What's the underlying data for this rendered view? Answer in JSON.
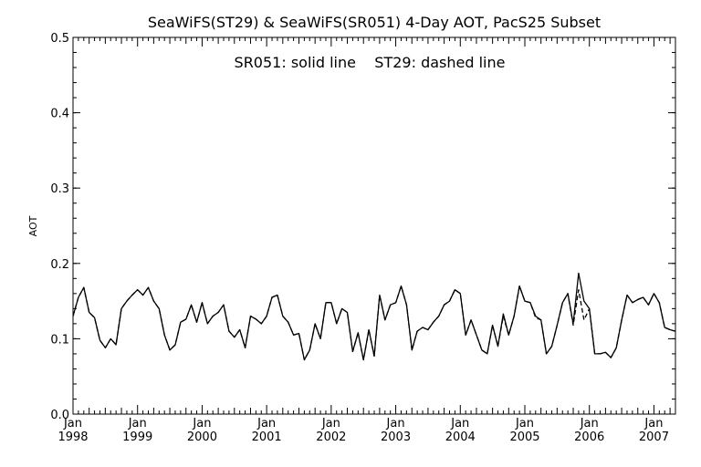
{
  "chart_data": {
    "type": "line",
    "title": "SeaWiFS(ST29) & SeaWiFS(SR051) 4-Day AOT, PacS25 Subset",
    "annotation": "SR051: solid line    ST29: dashed line",
    "xlabel": "",
    "ylabel": "AOT",
    "xlim": [
      "1998-01",
      "2007-05"
    ],
    "ylim": [
      0.0,
      0.5
    ],
    "y_ticks": [
      "0.0",
      "0.1",
      "0.2",
      "0.3",
      "0.4",
      "0.5"
    ],
    "x_ticks": [
      {
        "month": "Jan",
        "year": "1998"
      },
      {
        "month": "Jan",
        "year": "1999"
      },
      {
        "month": "Jan",
        "year": "2000"
      },
      {
        "month": "Jan",
        "year": "2001"
      },
      {
        "month": "Jan",
        "year": "2002"
      },
      {
        "month": "Jan",
        "year": "2003"
      },
      {
        "month": "Jan",
        "year": "2004"
      },
      {
        "month": "Jan",
        "year": "2005"
      },
      {
        "month": "Jan",
        "year": "2006"
      },
      {
        "month": "Jan",
        "year": "2007"
      }
    ],
    "grid": false,
    "series": [
      {
        "name": "SR051",
        "style": "solid",
        "color": "#000000",
        "x": [
          "1998-01",
          "1998-02",
          "1998-03",
          "1998-04",
          "1998-05",
          "1998-06",
          "1998-07",
          "1998-08",
          "1998-09",
          "1998-10",
          "1998-11",
          "1998-12",
          "1999-01",
          "1999-02",
          "1999-03",
          "1999-04",
          "1999-05",
          "1999-06",
          "1999-07",
          "1999-08",
          "1999-09",
          "1999-10",
          "1999-11",
          "1999-12",
          "2000-01",
          "2000-02",
          "2000-03",
          "2000-04",
          "2000-05",
          "2000-06",
          "2000-07",
          "2000-08",
          "2000-09",
          "2000-10",
          "2000-11",
          "2000-12",
          "2001-01",
          "2001-02",
          "2001-03",
          "2001-04",
          "2001-05",
          "2001-06",
          "2001-07",
          "2001-08",
          "2001-09",
          "2001-10",
          "2001-11",
          "2001-12",
          "2002-01",
          "2002-02",
          "2002-03",
          "2002-04",
          "2002-05",
          "2002-06",
          "2002-07",
          "2002-08",
          "2002-09",
          "2002-10",
          "2002-11",
          "2002-12",
          "2003-01",
          "2003-02",
          "2003-03",
          "2003-04",
          "2003-05",
          "2003-06",
          "2003-07",
          "2003-08",
          "2003-09",
          "2003-10",
          "2003-11",
          "2003-12",
          "2004-01",
          "2004-02",
          "2004-03",
          "2004-04",
          "2004-05",
          "2004-06",
          "2004-07",
          "2004-08",
          "2004-09",
          "2004-10",
          "2004-11",
          "2004-12",
          "2005-01",
          "2005-02",
          "2005-03",
          "2005-04",
          "2005-05",
          "2005-06",
          "2005-07",
          "2005-08",
          "2005-09",
          "2005-10",
          "2005-11",
          "2005-12",
          "2006-01",
          "2006-02",
          "2006-03",
          "2006-04",
          "2006-05",
          "2006-06",
          "2006-07",
          "2006-08",
          "2006-09",
          "2006-10",
          "2006-11",
          "2006-12",
          "2007-01",
          "2007-02",
          "2007-03",
          "2007-04",
          "2007-05"
        ],
        "values": [
          0.13,
          0.155,
          0.168,
          0.135,
          0.128,
          0.098,
          0.088,
          0.1,
          0.092,
          0.14,
          0.15,
          0.158,
          0.165,
          0.158,
          0.168,
          0.15,
          0.14,
          0.105,
          0.085,
          0.092,
          0.122,
          0.126,
          0.145,
          0.122,
          0.148,
          0.12,
          0.13,
          0.135,
          0.145,
          0.11,
          0.102,
          0.112,
          0.088,
          0.13,
          0.126,
          0.12,
          0.13,
          0.155,
          0.158,
          0.13,
          0.122,
          0.105,
          0.107,
          0.072,
          0.085,
          0.12,
          0.1,
          0.148,
          0.148,
          0.12,
          0.14,
          0.135,
          0.083,
          0.108,
          0.072,
          0.112,
          0.077,
          0.158,
          0.125,
          0.145,
          0.148,
          0.17,
          0.145,
          0.085,
          0.11,
          0.115,
          0.112,
          0.122,
          0.13,
          0.145,
          0.15,
          0.165,
          0.16,
          0.105,
          0.125,
          0.105,
          0.085,
          0.08,
          0.118,
          0.09,
          0.133,
          0.105,
          0.13,
          0.17,
          0.15,
          0.148,
          0.13,
          0.125,
          0.08,
          0.09,
          0.118,
          0.148,
          0.16,
          0.12,
          0.187,
          0.15,
          0.14,
          0.08,
          0.08,
          0.082,
          0.075,
          0.088,
          0.125,
          0.158,
          0.148,
          0.152,
          0.155,
          0.145,
          0.16,
          0.148,
          0.115,
          0.112,
          0.11
        ]
      },
      {
        "name": "ST29",
        "style": "dashed",
        "color": "#000000",
        "x": [
          "1998-01",
          "1998-02",
          "1998-03",
          "1998-04",
          "1998-05",
          "1998-06",
          "1998-07",
          "1998-08",
          "1998-09",
          "1998-10",
          "1998-11",
          "1998-12",
          "1999-01",
          "1999-02",
          "1999-03",
          "1999-04",
          "1999-05",
          "1999-06",
          "1999-07",
          "1999-08",
          "1999-09",
          "1999-10",
          "1999-11",
          "1999-12",
          "2000-01",
          "2000-02",
          "2000-03",
          "2000-04",
          "2000-05",
          "2000-06",
          "2000-07",
          "2000-08",
          "2000-09",
          "2000-10",
          "2000-11",
          "2000-12",
          "2001-01",
          "2001-02",
          "2001-03",
          "2001-04",
          "2001-05",
          "2001-06",
          "2001-07",
          "2001-08",
          "2001-09",
          "2001-10",
          "2001-11",
          "2001-12",
          "2002-01",
          "2002-02",
          "2002-03",
          "2002-04",
          "2002-05",
          "2002-06",
          "2002-07",
          "2002-08",
          "2002-09",
          "2002-10",
          "2002-11",
          "2002-12",
          "2003-01",
          "2003-02",
          "2003-03",
          "2003-04",
          "2003-05",
          "2003-06",
          "2003-07",
          "2003-08",
          "2003-09",
          "2003-10",
          "2003-11",
          "2003-12",
          "2004-01",
          "2004-02",
          "2004-03",
          "2004-04",
          "2004-05",
          "2004-06",
          "2004-07",
          "2004-08",
          "2004-09",
          "2004-10",
          "2004-11",
          "2004-12",
          "2005-01",
          "2005-02",
          "2005-03",
          "2005-04",
          "2005-05",
          "2005-06",
          "2005-07",
          "2005-08",
          "2005-09",
          "2005-10",
          "2005-11",
          "2005-12",
          "2006-01",
          "2006-02",
          "2006-03",
          "2006-04",
          "2006-05",
          "2006-06",
          "2006-07",
          "2006-08",
          "2006-09",
          "2006-10",
          "2006-11",
          "2006-12",
          "2007-01",
          "2007-02",
          "2007-03",
          "2007-04",
          "2007-05"
        ],
        "values": [
          0.13,
          0.155,
          0.168,
          0.135,
          0.128,
          0.098,
          0.088,
          0.1,
          0.092,
          0.14,
          0.15,
          0.158,
          0.165,
          0.158,
          0.168,
          0.15,
          0.14,
          0.105,
          0.085,
          0.092,
          0.122,
          0.126,
          0.145,
          0.122,
          0.148,
          0.12,
          0.13,
          0.135,
          0.145,
          0.11,
          0.102,
          0.112,
          0.088,
          0.13,
          0.126,
          0.12,
          0.13,
          0.155,
          0.158,
          0.13,
          0.122,
          0.105,
          0.107,
          0.072,
          0.085,
          0.12,
          0.1,
          0.148,
          0.148,
          0.12,
          0.14,
          0.135,
          0.083,
          0.108,
          0.072,
          0.112,
          0.077,
          0.158,
          0.125,
          0.145,
          0.148,
          0.17,
          0.145,
          0.085,
          0.11,
          0.115,
          0.112,
          0.122,
          0.13,
          0.145,
          0.15,
          0.165,
          0.16,
          0.105,
          0.125,
          0.105,
          0.085,
          0.08,
          0.118,
          0.09,
          0.13,
          0.105,
          0.13,
          0.17,
          0.15,
          0.148,
          0.128,
          0.125,
          0.08,
          0.09,
          0.118,
          0.148,
          0.16,
          0.118,
          0.165,
          0.125,
          0.14,
          0.08,
          0.08,
          0.082,
          0.075,
          0.088,
          0.125,
          0.158,
          0.148,
          0.152,
          0.155,
          0.145,
          0.16,
          0.148,
          0.115,
          0.112,
          0.11
        ]
      }
    ]
  }
}
